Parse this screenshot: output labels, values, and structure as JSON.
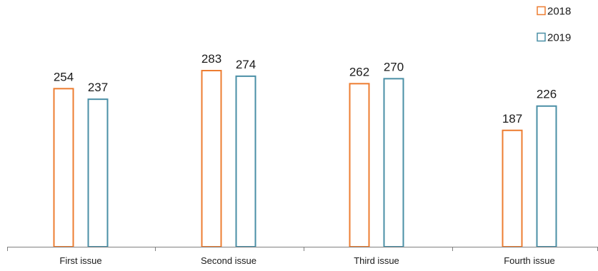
{
  "chart_data": {
    "type": "bar",
    "title": "",
    "xlabel": "",
    "ylabel": "",
    "categories": [
      "First issue",
      "Second issue",
      "Third issue",
      "Fourth issue"
    ],
    "series": [
      {
        "name": "2018",
        "values": [
          254,
          283,
          262,
          187
        ],
        "color": "#ed7d31"
      },
      {
        "name": "2019",
        "values": [
          237,
          274,
          270,
          226
        ],
        "color": "#4a8fa6"
      }
    ],
    "ylim": [
      0,
      283
    ],
    "grid": false,
    "legend_position": "top-right",
    "data_labels": true
  }
}
